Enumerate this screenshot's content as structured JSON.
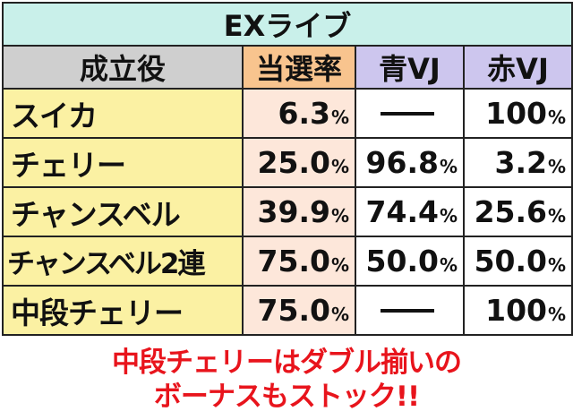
{
  "title": "EXライブ",
  "headers": {
    "role": "成立役",
    "rate": "当選率",
    "blue": "青VJ",
    "red": "赤VJ"
  },
  "rows": [
    {
      "name": "スイカ",
      "rate": "6.3",
      "blue": "",
      "red": "100"
    },
    {
      "name": "チェリー",
      "rate": "25.0",
      "blue": "96.8",
      "red": "3.2"
    },
    {
      "name": "チャンスベル",
      "rate": "39.9",
      "blue": "74.4",
      "red": "25.6"
    },
    {
      "name": "チャンスベル2連",
      "rate": "75.0",
      "blue": "50.0",
      "red": "50.0"
    },
    {
      "name": "中段チェリー",
      "rate": "75.0",
      "blue": "",
      "red": "100"
    }
  ],
  "unit": "%",
  "note": {
    "line1": "中段チェリーはダブル揃いの",
    "line2": "ボーナスもストック!!"
  },
  "colors": {
    "title_bg": "#c9f0ea",
    "role_header_bg": "#cfcfcf",
    "rate_header_bg": "#f8c48e",
    "vj_header_bg": "#cdc6ee",
    "name_bg": "#fbf1a3",
    "rate_bg": "#fde7da",
    "note_text": "#e8141c"
  }
}
